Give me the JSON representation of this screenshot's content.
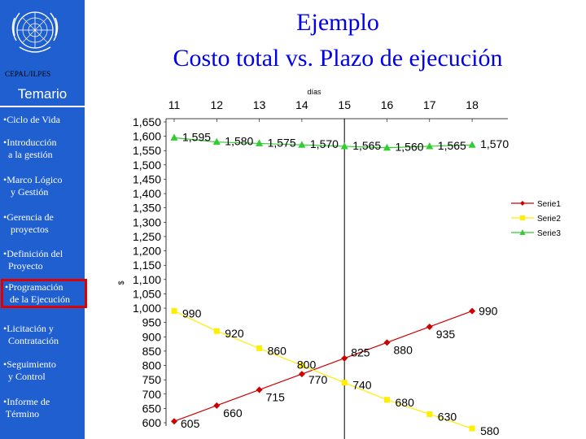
{
  "header": {
    "title_line1": "Ejemplo",
    "title_line2": "Costo total vs. Plazo de ejecución",
    "org": "CEPAL/ILPES"
  },
  "sidebar": {
    "heading": "Temario",
    "items": [
      {
        "label": "•Ciclo de Vida",
        "active": false
      },
      {
        "label": "•Introducción\n  a la gestión",
        "active": false
      },
      {
        "label": "•Marco Lógico\n   y Gestión",
        "active": false
      },
      {
        "label": "•Gerencia de\n   proyectos",
        "active": false
      },
      {
        "label": "•Definición del\n  Proyecto",
        "active": false
      },
      {
        "label": "•Programación\n  de la Ejecución",
        "active": true
      },
      {
        "label": "•Licitación y\n  Contratación",
        "active": false
      },
      {
        "label": "•Seguimiento\n  y Control",
        "active": false
      },
      {
        "label": "•Informe de\n Término",
        "active": false
      }
    ]
  },
  "colors": {
    "sidebar_bg": "#1f5fd0",
    "title": "#0000ee",
    "serie1": "#cc0000",
    "serie2": "#ffee00",
    "serie3": "#33cc33",
    "active_border": "#e00000"
  },
  "chart_data": {
    "type": "line",
    "xlabel": "días",
    "ylabel": "$",
    "x": [
      11,
      12,
      13,
      14,
      15,
      16,
      17,
      18
    ],
    "x_ticks": [
      "11",
      "12",
      "13",
      "14",
      "15",
      "16",
      "17",
      "18"
    ],
    "ylim": [
      600,
      1650
    ],
    "y_ticks": [
      "600",
      "650",
      "700",
      "750",
      "800",
      "850",
      "900",
      "950",
      "1,000",
      "1,050",
      "1,100",
      "1,150",
      "1,200",
      "1,250",
      "1,300",
      "1,350",
      "1,400",
      "1,450",
      "1,500",
      "1,550",
      "1,600",
      "1,650"
    ],
    "vertical_marker_x": 15,
    "grid": false,
    "legend_position": "right",
    "series": [
      {
        "name": "Serie1",
        "color": "#cc0000",
        "marker": "diamond",
        "values": [
          605,
          660,
          715,
          770,
          825,
          880,
          935,
          990
        ],
        "labels": [
          "605",
          "660",
          "715",
          "770",
          "825",
          "880",
          "935",
          "990"
        ]
      },
      {
        "name": "Serie2",
        "color": "#ffee00",
        "marker": "square",
        "values": [
          990,
          920,
          860,
          800,
          740,
          680,
          630,
          580
        ],
        "labels": [
          "990",
          "920",
          "860",
          "800",
          "740",
          "680",
          "630",
          "580"
        ]
      },
      {
        "name": "Serie3",
        "color": "#33cc33",
        "marker": "triangle",
        "values": [
          1595,
          1580,
          1575,
          1570,
          1565,
          1560,
          1565,
          1570
        ],
        "labels": [
          "1,595",
          "1,580",
          "1,575",
          "1,570",
          "1,565",
          "1,560",
          "1,565",
          "1,570"
        ]
      }
    ]
  }
}
